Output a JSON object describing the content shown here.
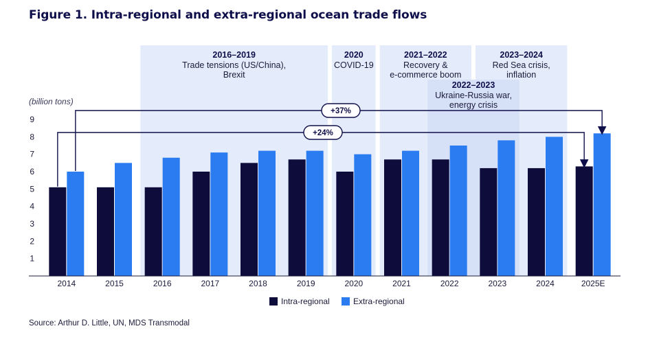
{
  "title": "Figure 1. Intra-regional and extra-regional ocean trade flows",
  "source": "Source: Arthur D. Little, UN, MDS Transmodal",
  "colors": {
    "intra": "#0e0c3a",
    "extra": "#2b7cf0",
    "period_band": "#e4ecfb",
    "overlap_band": "#d2def7",
    "axis": "#1a1a3a",
    "arrow": "#0e0e4a"
  },
  "periods": [
    {
      "start": "2016",
      "end": "2019",
      "title": "2016–2019",
      "desc": [
        "Trade tensions (US/China),",
        "Brexit"
      ]
    },
    {
      "start": "2020",
      "end": "2020",
      "title": "2020",
      "desc": [
        "COVID-19"
      ]
    },
    {
      "start": "2021",
      "end": "2022",
      "title": "2021–2022",
      "desc": [
        "Recovery &",
        "e-commerce boom"
      ]
    },
    {
      "start": "2022",
      "end": "2023",
      "title": "2022–2023",
      "desc": [
        "Ukraine-Russia war,",
        "energy crisis"
      ]
    },
    {
      "start": "2023",
      "end": "2024",
      "title": "2023–2024",
      "desc": [
        "Red Sea crisis,",
        "inflation"
      ]
    }
  ],
  "annotations": [
    {
      "label": "+37%",
      "from": "2014",
      "to": "2025E",
      "series": "Extra-regional"
    },
    {
      "label": "+24%",
      "from": "2014",
      "to": "2025E",
      "series": "Intra-regional"
    }
  ],
  "chart_data": {
    "type": "bar",
    "title": "Figure 1. Intra-regional and extra-regional ocean trade flows",
    "ylabel": "(billion tons)",
    "xlabel": "",
    "ylim": [
      0,
      9
    ],
    "yticks": [
      1,
      2,
      3,
      4,
      5,
      6,
      7,
      8,
      9
    ],
    "grid": false,
    "legend_position": "bottom-center",
    "categories": [
      "2014",
      "2015",
      "2016",
      "2017",
      "2018",
      "2019",
      "2020",
      "2021",
      "2022",
      "2023",
      "2024",
      "2025E"
    ],
    "series": [
      {
        "name": "Intra-regional",
        "values": [
          5.1,
          5.1,
          5.1,
          6.0,
          6.5,
          6.7,
          6.0,
          6.7,
          6.7,
          6.2,
          6.2,
          6.3
        ]
      },
      {
        "name": "Extra-regional",
        "values": [
          6.0,
          6.5,
          6.8,
          7.1,
          7.2,
          7.2,
          7.0,
          7.2,
          7.5,
          7.8,
          8.0,
          8.2
        ]
      }
    ]
  }
}
